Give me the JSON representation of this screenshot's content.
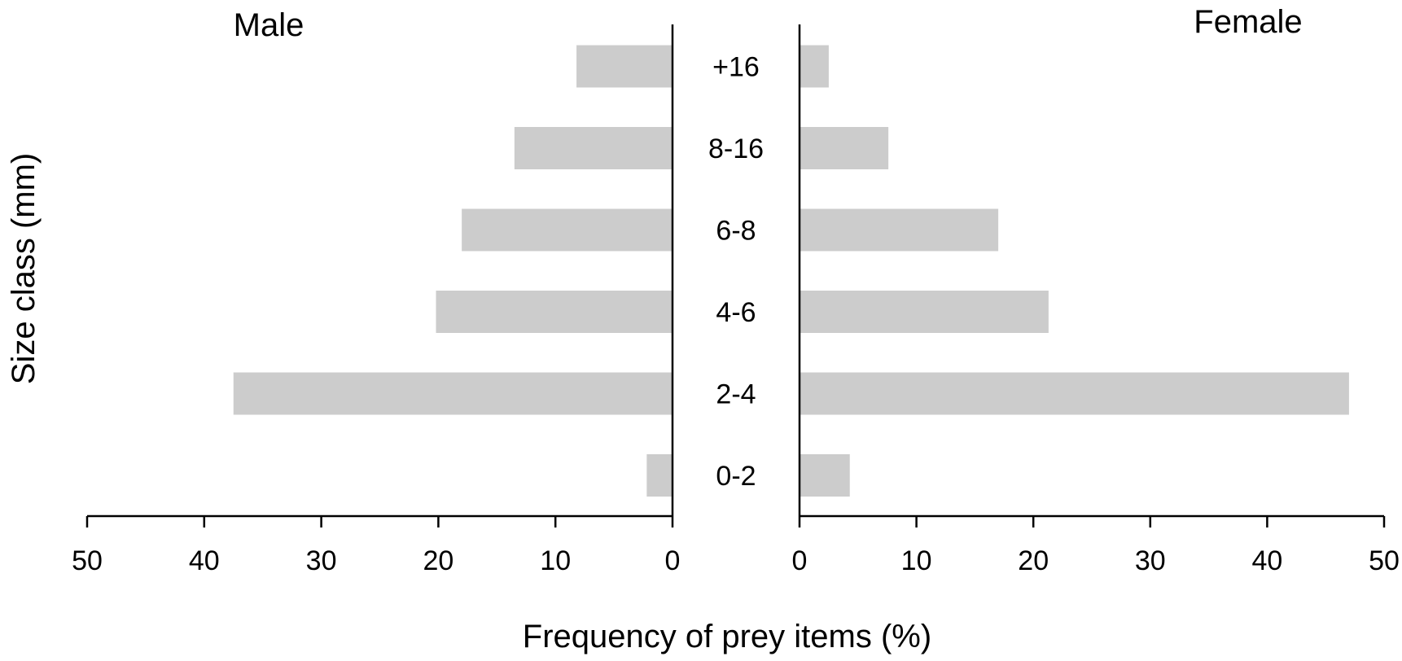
{
  "chart_data": {
    "type": "bar",
    "orientation": "horizontal",
    "layout": "population-pyramid",
    "categories": [
      "0-2",
      "2-4",
      "4-6",
      "6-8",
      "8-16",
      "+16"
    ],
    "series": [
      {
        "name": "Male",
        "values": [
          2.2,
          37.5,
          20.2,
          18.0,
          13.5,
          8.2
        ]
      },
      {
        "name": "Female",
        "values": [
          4.3,
          47.0,
          21.3,
          17.0,
          7.6,
          2.5
        ]
      }
    ],
    "xlim": [
      0,
      50
    ],
    "xticks": [
      "0",
      "10",
      "20",
      "30",
      "40",
      "50"
    ],
    "xlabel": "Frequency of prey items (%)",
    "ylabel": "Size class (mm)",
    "bar_color": "#cccccc",
    "grid": false,
    "legend": "none"
  }
}
